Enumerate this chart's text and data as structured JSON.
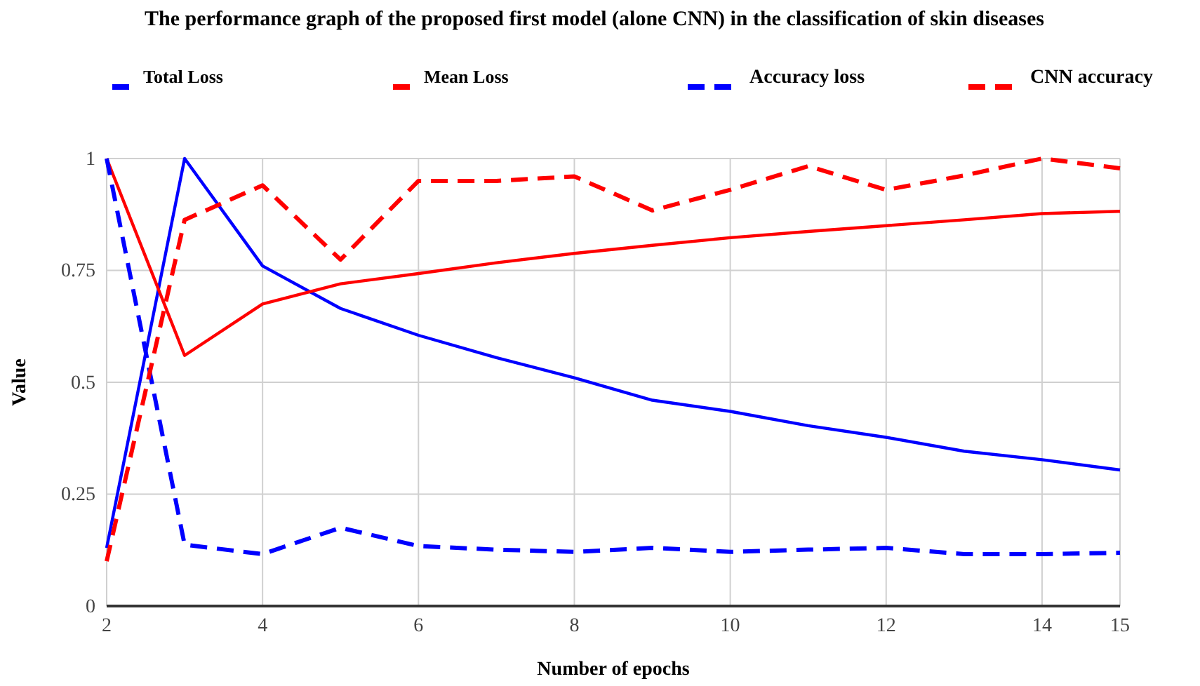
{
  "chart_data": {
    "type": "line",
    "title": "The performance graph of the proposed first model (alone CNN) in the classification of skin diseases",
    "xlabel": "Number of epochs",
    "ylabel": "Value",
    "x": [
      2,
      3,
      4,
      5,
      6,
      7,
      8,
      9,
      10,
      11,
      12,
      13,
      14,
      15
    ],
    "series": [
      {
        "name": "Total Loss",
        "color": "#0000ff",
        "line_style": "solid",
        "values": [
          0.13,
          1.0,
          0.76,
          0.665,
          0.605,
          0.555,
          0.51,
          0.46,
          0.435,
          0.403,
          0.377,
          0.346,
          0.327,
          0.304
        ]
      },
      {
        "name": "Mean Loss",
        "color": "#ff0000",
        "line_style": "solid",
        "values": [
          1.0,
          0.56,
          0.675,
          0.72,
          0.743,
          0.767,
          0.788,
          0.806,
          0.823,
          0.837,
          0.85,
          0.863,
          0.877,
          0.882
        ]
      },
      {
        "name": "Accuracy loss",
        "color": "#0000ff",
        "line_style": "dashed",
        "values": [
          1.0,
          0.137,
          0.116,
          0.175,
          0.134,
          0.126,
          0.121,
          0.13,
          0.121,
          0.126,
          0.13,
          0.116,
          0.116,
          0.119
        ]
      },
      {
        "name": "CNN accuracy",
        "color": "#ff0000",
        "line_style": "dashed",
        "values": [
          0.1,
          0.863,
          0.94,
          0.774,
          0.95,
          0.95,
          0.96,
          0.884,
          0.93,
          0.983,
          0.93,
          0.962,
          1.0,
          0.978
        ]
      }
    ],
    "xlim": [
      2,
      15
    ],
    "xticks": [
      2,
      4,
      6,
      8,
      10,
      12,
      14,
      15
    ],
    "ylim": [
      0,
      1
    ],
    "yticks": [
      0,
      0.25,
      0.5,
      0.75,
      1
    ],
    "grid": true,
    "legend": "top",
    "marker": "none"
  }
}
